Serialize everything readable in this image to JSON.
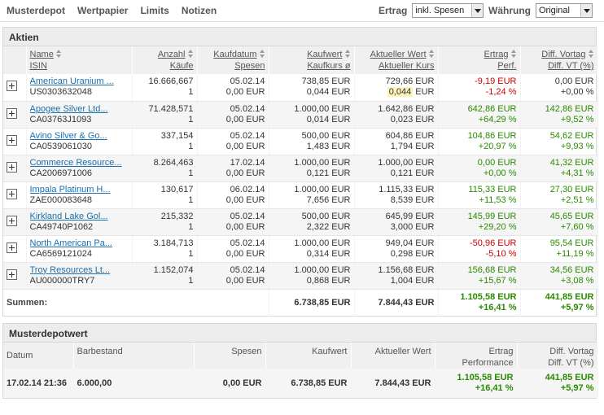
{
  "nav": [
    "Musterdepot",
    "Wertpapier",
    "Limits",
    "Notizen"
  ],
  "ertrag": {
    "label": "Ertrag",
    "value": "inkl. Spesen"
  },
  "waehrung": {
    "label": "Währung",
    "value": "Original"
  },
  "aktien": {
    "title": "Aktien",
    "headers": {
      "name": [
        "Name",
        "ISIN"
      ],
      "anzahl": [
        "Anzahl",
        "Käufe"
      ],
      "kaufdatum": [
        "Kaufdatum",
        "Spesen"
      ],
      "kaufwert": [
        "Kaufwert",
        "Kaufkurs ø"
      ],
      "aktuell": [
        "Aktueller Wert",
        "Aktueller Kurs"
      ],
      "ertrag": [
        "Ertrag",
        "Perf."
      ],
      "diff": [
        "Diff. Vortag",
        "Diff. VT (%)"
      ]
    },
    "rows": [
      {
        "name": "American Uranium ...",
        "isin": "US0303632048",
        "anzahl": "16.666,667",
        "kaeufe": "1",
        "kaufdatum": "05.02.14",
        "spesen": "0,00 EUR",
        "kaufwert": "738,85 EUR",
        "kaufkurs": "0,044 EUR",
        "aktwert": "729,66 EUR",
        "aktkurs": "0,044",
        "aktkurs_unit": " EUR",
        "ertrag": "-9,19 EUR",
        "perf": "-1,24 %",
        "diff": "0,00 EUR",
        "diffpct": "+0,00 %",
        "ertrag_sign": "neg",
        "diff_sign": "zero"
      },
      {
        "name": "Apogee Silver Ltd...",
        "isin": "CA03763J1093",
        "anzahl": "71.428,571",
        "kaeufe": "1",
        "kaufdatum": "05.02.14",
        "spesen": "0,00 EUR",
        "kaufwert": "1.000,00 EUR",
        "kaufkurs": "0,014 EUR",
        "aktwert": "1.642,86 EUR",
        "aktkurs": "0,023",
        "aktkurs_unit": " EUR",
        "ertrag": "642,86 EUR",
        "perf": "+64,29 %",
        "diff": "142,86 EUR",
        "diffpct": "+9,52 %",
        "ertrag_sign": "pos",
        "diff_sign": "pos"
      },
      {
        "name": "Avino Silver & Go...",
        "isin": "CA0539061030",
        "anzahl": "337,154",
        "kaeufe": "1",
        "kaufdatum": "05.02.14",
        "spesen": "0,00 EUR",
        "kaufwert": "500,00 EUR",
        "kaufkurs": "1,483 EUR",
        "aktwert": "604,86 EUR",
        "aktkurs": "1,794",
        "aktkurs_unit": " EUR",
        "ertrag": "104,86 EUR",
        "perf": "+20,97 %",
        "diff": "54,62 EUR",
        "diffpct": "+9,93 %",
        "ertrag_sign": "pos",
        "diff_sign": "pos"
      },
      {
        "name": "Commerce Resource...",
        "isin": "CA2006971006",
        "anzahl": "8.264,463",
        "kaeufe": "1",
        "kaufdatum": "17.02.14",
        "spesen": "0,00 EUR",
        "kaufwert": "1.000,00 EUR",
        "kaufkurs": "0,121 EUR",
        "aktwert": "1.000,00 EUR",
        "aktkurs": "0,121",
        "aktkurs_unit": " EUR",
        "ertrag": "0,00 EUR",
        "perf": "+0,00 %",
        "diff": "41,32 EUR",
        "diffpct": "+4,31 %",
        "ertrag_sign": "pos",
        "diff_sign": "pos"
      },
      {
        "name": "Impala Platinum H...",
        "isin": "ZAE000083648",
        "anzahl": "130,617",
        "kaeufe": "1",
        "kaufdatum": "06.02.14",
        "spesen": "0,00 EUR",
        "kaufwert": "1.000,00 EUR",
        "kaufkurs": "7,656 EUR",
        "aktwert": "1.115,33 EUR",
        "aktkurs": "8,539",
        "aktkurs_unit": " EUR",
        "ertrag": "115,33 EUR",
        "perf": "+11,53 %",
        "diff": "27,30 EUR",
        "diffpct": "+2,51 %",
        "ertrag_sign": "pos",
        "diff_sign": "pos"
      },
      {
        "name": "Kirkland Lake Gol...",
        "isin": "CA49740P1062",
        "anzahl": "215,332",
        "kaeufe": "1",
        "kaufdatum": "05.02.14",
        "spesen": "0,00 EUR",
        "kaufwert": "500,00 EUR",
        "kaufkurs": "2,322 EUR",
        "aktwert": "645,99 EUR",
        "aktkurs": "3,000",
        "aktkurs_unit": " EUR",
        "ertrag": "145,99 EUR",
        "perf": "+29,20 %",
        "diff": "45,65 EUR",
        "diffpct": "+7,60 %",
        "ertrag_sign": "pos",
        "diff_sign": "pos"
      },
      {
        "name": "North American Pa...",
        "isin": "CA6569121024",
        "anzahl": "3.184,713",
        "kaeufe": "1",
        "kaufdatum": "05.02.14",
        "spesen": "0,00 EUR",
        "kaufwert": "1.000,00 EUR",
        "kaufkurs": "0,314 EUR",
        "aktwert": "949,04 EUR",
        "aktkurs": "0,298",
        "aktkurs_unit": " EUR",
        "ertrag": "-50,96 EUR",
        "perf": "-5,10 %",
        "diff": "95,54 EUR",
        "diffpct": "+11,19 %",
        "ertrag_sign": "neg",
        "diff_sign": "pos"
      },
      {
        "name": "Troy Resources Lt...",
        "isin": "AU000000TRY7",
        "anzahl": "1.152,074",
        "kaeufe": "1",
        "kaufdatum": "05.02.14",
        "spesen": "0,00 EUR",
        "kaufwert": "1.000,00 EUR",
        "kaufkurs": "0,868 EUR",
        "aktwert": "1.156,68 EUR",
        "aktkurs": "1,004",
        "aktkurs_unit": " EUR",
        "ertrag": "156,68 EUR",
        "perf": "+15,67 %",
        "diff": "34,56 EUR",
        "diffpct": "+3,08 %",
        "ertrag_sign": "pos",
        "diff_sign": "pos"
      }
    ],
    "summen": {
      "label": "Summen:",
      "kaufwert": "6.738,85 EUR",
      "aktwert": "7.844,43 EUR",
      "ertrag": "1.105,58 EUR",
      "perf": "+16,41 %",
      "diff": "441,85 EUR",
      "diffpct": "+5,97 %"
    }
  },
  "depotwert": {
    "title": "Musterdepotwert",
    "headers": {
      "datum": "Datum",
      "barbestand": "Barbestand",
      "spesen": "Spesen",
      "kaufwert": "Kaufwert",
      "aktwert": "Aktueller Wert",
      "ertrag": [
        "Ertrag",
        "Performance"
      ],
      "diff": [
        "Diff. Vortag",
        "Diff. VT (%)"
      ]
    },
    "row": {
      "datum": "17.02.14 21:36",
      "barbestand": "6.000,00",
      "spesen": "0,00 EUR",
      "kaufwert": "6.738,85 EUR",
      "aktwert": "7.844,43 EUR",
      "ertrag": "1.105,58 EUR",
      "perf": "+16,41 %",
      "diff": "441,85 EUR",
      "diffpct": "+5,97 %"
    }
  },
  "colors": {
    "positive": "#2a8a00",
    "negative": "#cc0000",
    "link": "#1a6fae",
    "highlight": "#fff4b8"
  }
}
